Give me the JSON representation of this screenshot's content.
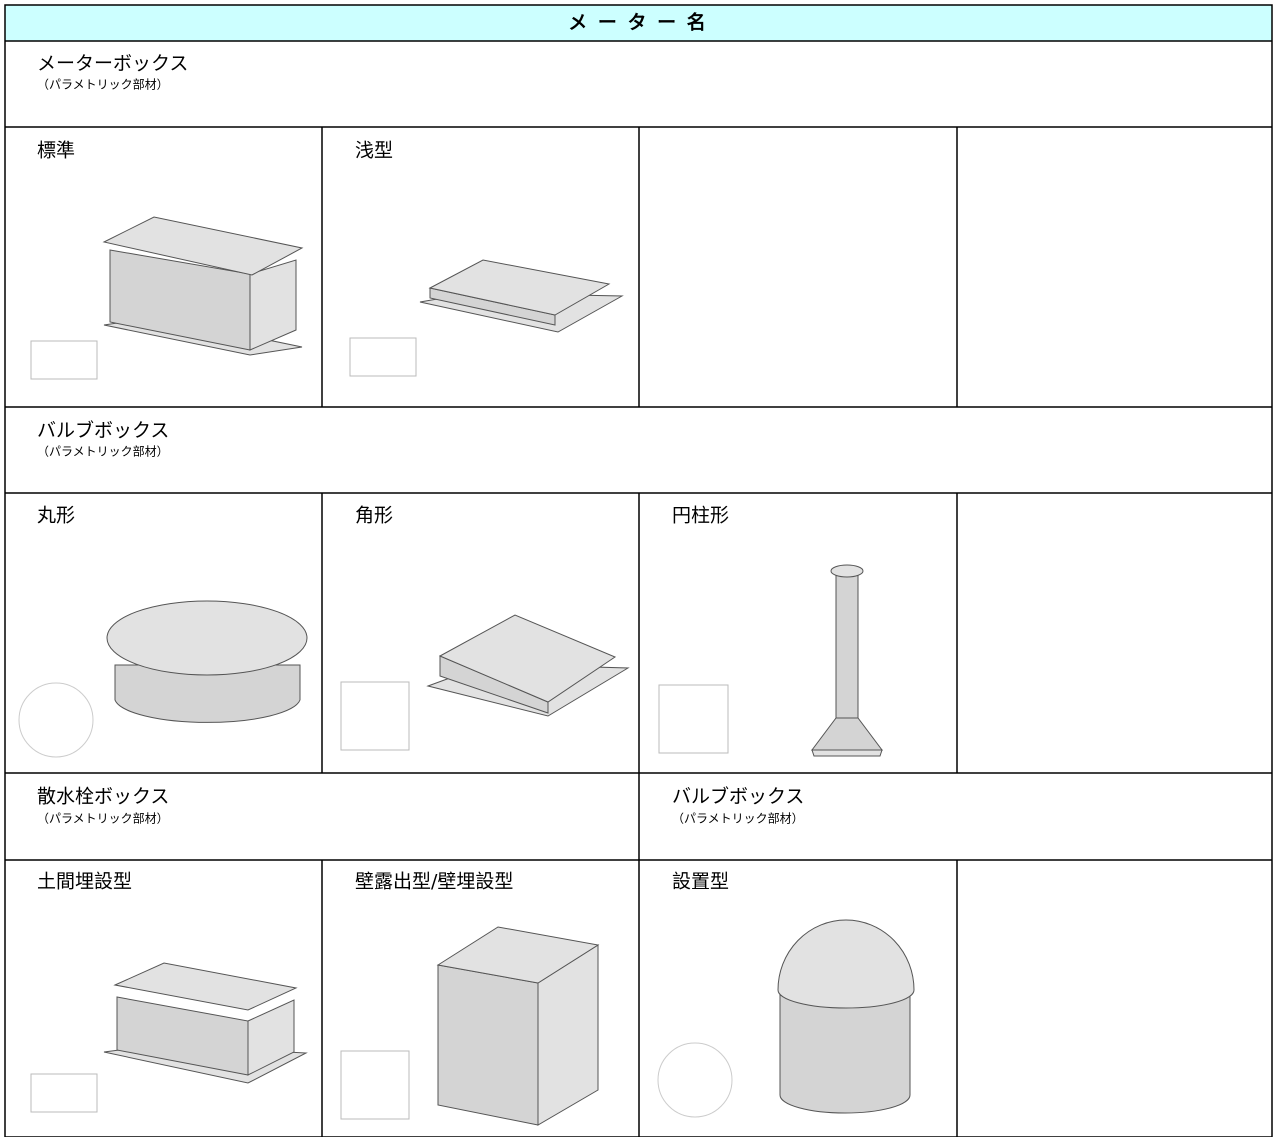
{
  "header": {
    "title": "メ ー タ ー 名"
  },
  "sections": [
    {
      "groups": [
        {
          "title": "メーターボックス",
          "subtitle": "（パラメトリック部材）"
        }
      ],
      "items": [
        "標準",
        "浅型"
      ]
    },
    {
      "groups": [
        {
          "title": "バルブボックス",
          "subtitle": "（パラメトリック部材）"
        }
      ],
      "items": [
        "丸形",
        "角形",
        "円柱形"
      ]
    },
    {
      "groups": [
        {
          "title": "散水栓ボックス",
          "subtitle": "（パラメトリック部材）"
        },
        {
          "title": "バルブボックス",
          "subtitle": "（パラメトリック部材）"
        }
      ],
      "items": [
        "土間埋設型",
        "壁露出型/壁埋設型",
        "設置型"
      ]
    }
  ]
}
